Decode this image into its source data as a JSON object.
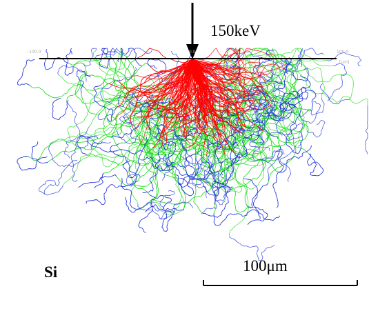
{
  "annotations": {
    "energy": "150keV",
    "material": "Si",
    "scale_bar": "100μm"
  },
  "axis": {
    "left": "-100.0",
    "center": "0.0",
    "right": "100.0",
    "unit": "[um]"
  }
}
